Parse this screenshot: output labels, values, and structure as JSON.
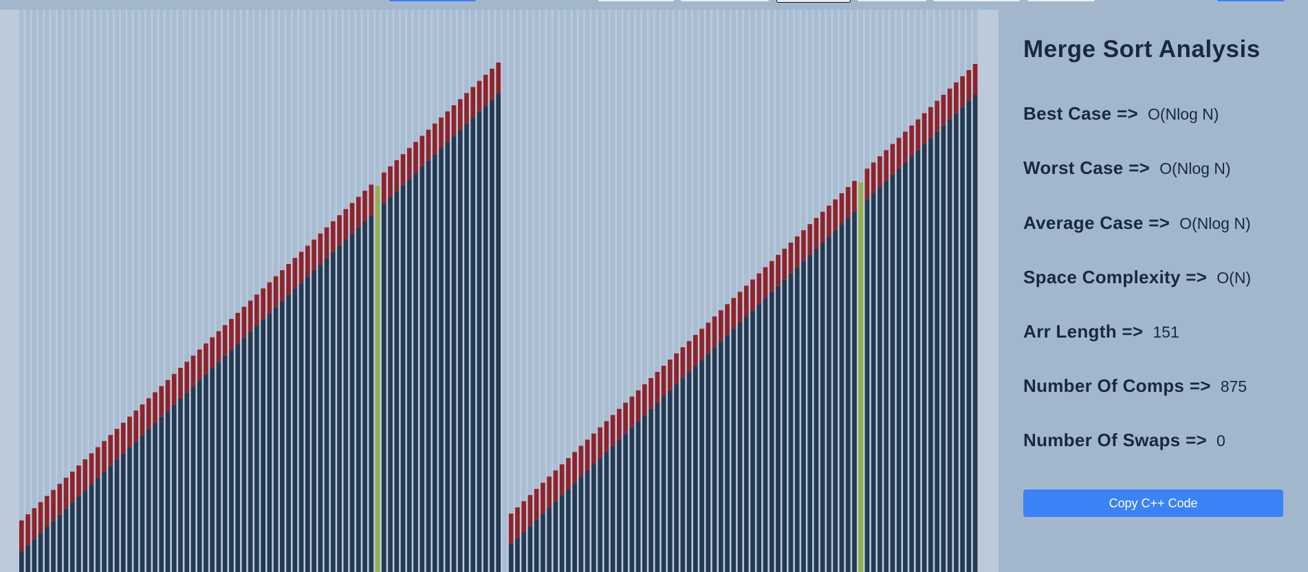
{
  "panel": {
    "title": "Merge Sort Analysis",
    "stats": [
      {
        "label": "Best Case =>",
        "value": "O(Nlog N)"
      },
      {
        "label": "Worst Case =>",
        "value": "O(Nlog N)"
      },
      {
        "label": "Average Case =>",
        "value": "O(Nlog N)"
      },
      {
        "label": "Space Complexity =>",
        "value": "O(N)"
      },
      {
        "label": "Arr Length =>",
        "value": "151"
      },
      {
        "label": "Number Of Comps =>",
        "value": "875"
      },
      {
        "label": "Number Of Swaps =>",
        "value": "0"
      }
    ],
    "copy_button_label": "Copy C++ Code"
  },
  "colors": {
    "bar": "#243a52",
    "bar_highlight_red": "#8f232b",
    "bar_highlight_green": "#93b04a",
    "bar_track": "#a9bdd2",
    "viz_background": "#bccadb",
    "accent": "#3b82f6"
  },
  "visualization": {
    "bar_count": 151,
    "green_bar_indices": [
      56,
      132
    ],
    "empty_bar_indices": [
      76
    ]
  }
}
